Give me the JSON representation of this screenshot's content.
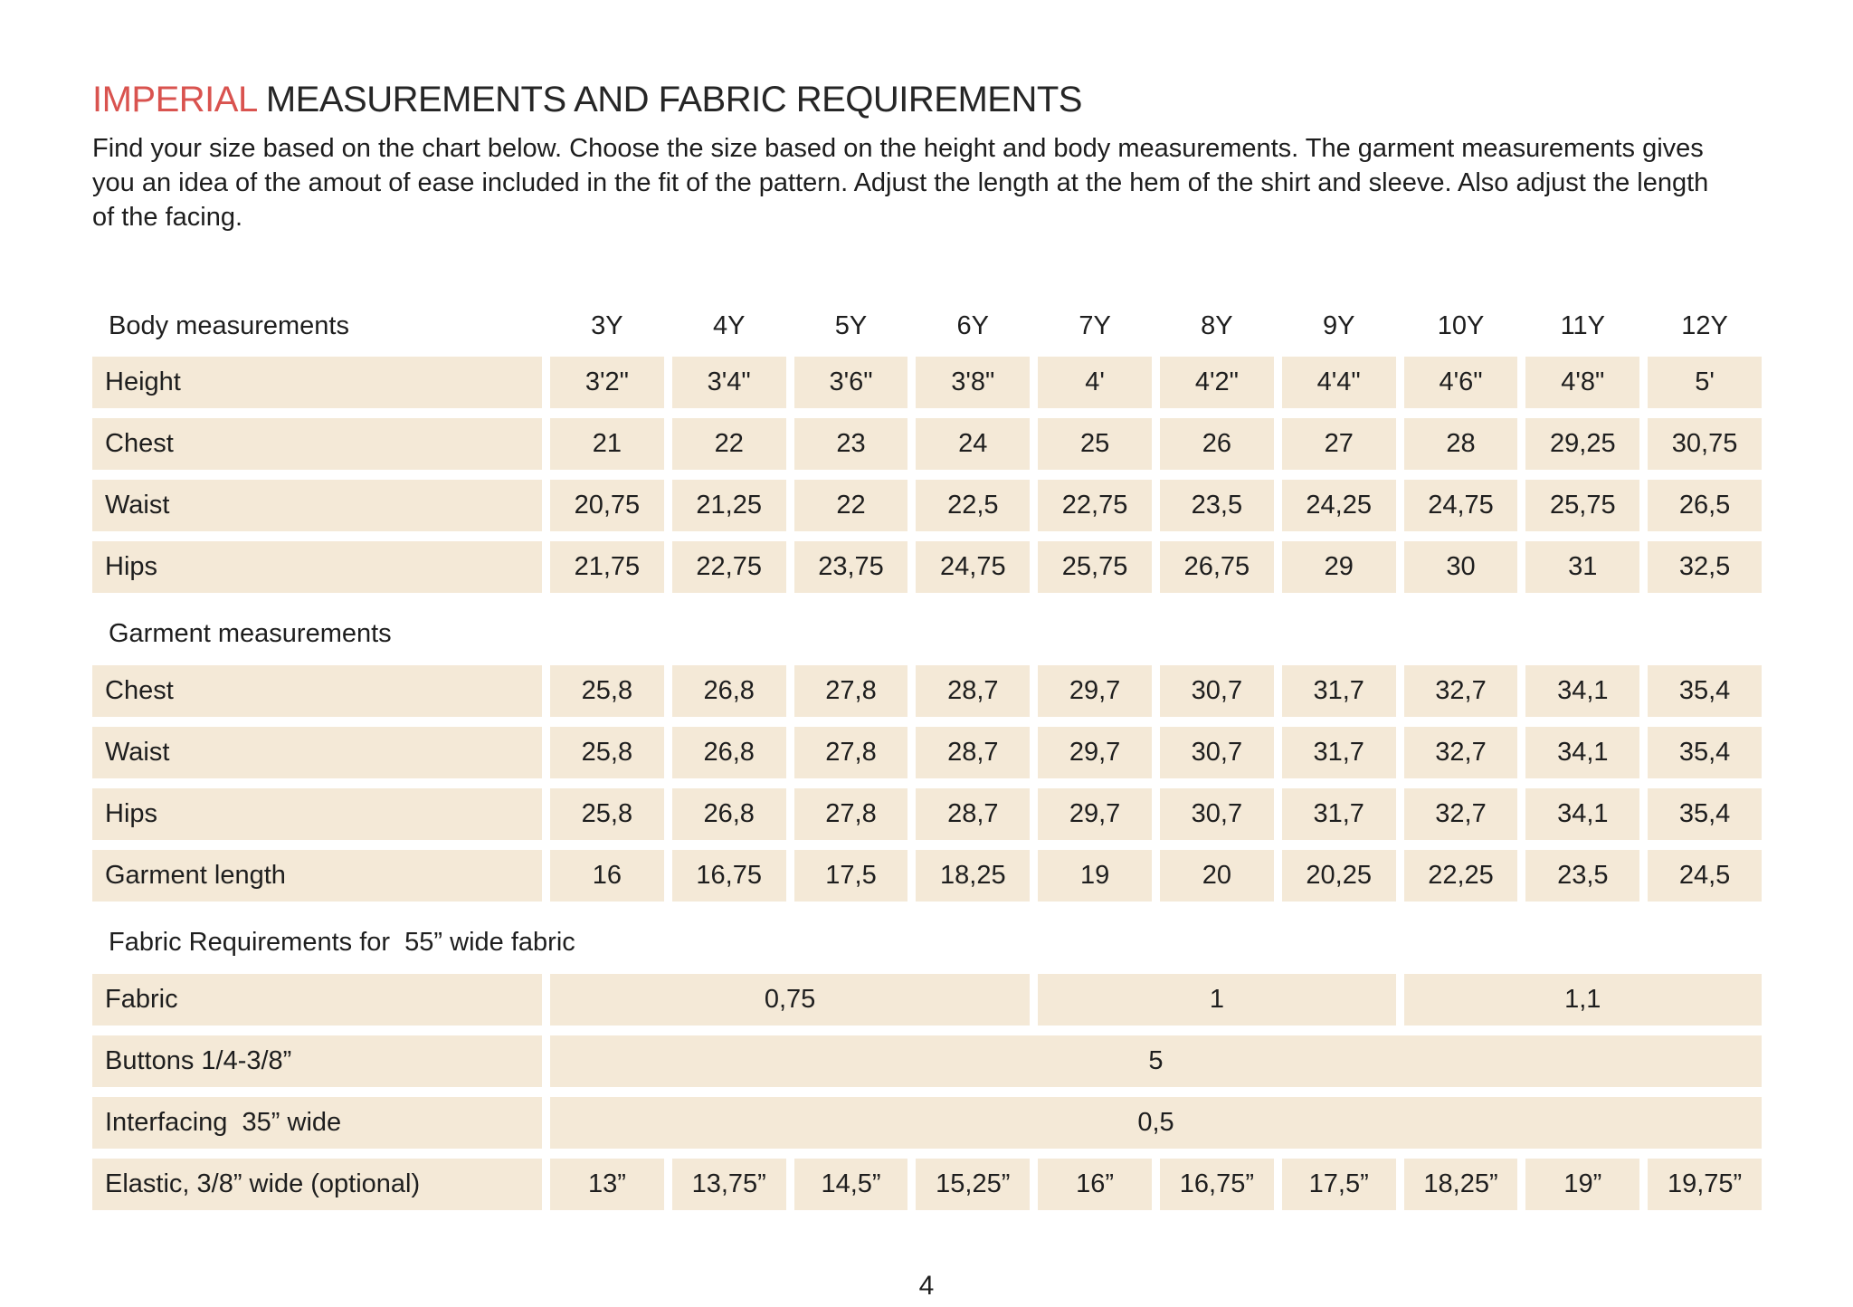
{
  "page": {
    "title_highlight": "IMPERIAL",
    "title_rest": " MEASUREMENTS AND FABRIC REQUIREMENTS",
    "intro": "Find your size based on the chart below. Choose the size based on the height and body measurements. The garment measurements gives you an idea of the amout of ease included in the fit of the pattern. Adjust the length at the hem of the shirt and sleeve. Also adjust the length of the facing.",
    "page_number": "4"
  },
  "colors": {
    "accent_red": "#d9534f",
    "cell_background": "#f4e9d7",
    "text": "#1e1e1e"
  },
  "size_table": {
    "sizes": [
      "3Y",
      "4Y",
      "5Y",
      "6Y",
      "7Y",
      "8Y",
      "9Y",
      "10Y",
      "11Y",
      "12Y"
    ],
    "sections": [
      {
        "header": "Body measurements",
        "show_sizes": true,
        "rows": [
          {
            "label": "Height",
            "values": [
              "3'2\"",
              "3'4\"",
              "3'6\"",
              "3'8\"",
              "4'",
              "4'2\"",
              "4'4\"",
              "4'6\"",
              "4'8\"",
              "5'"
            ]
          },
          {
            "label": "Chest",
            "values": [
              "21",
              "22",
              "23",
              "24",
              "25",
              "26",
              "27",
              "28",
              "29,25",
              "30,75"
            ]
          },
          {
            "label": "Waist",
            "values": [
              "20,75",
              "21,25",
              "22",
              "22,5",
              "22,75",
              "23,5",
              "24,25",
              "24,75",
              "25,75",
              "26,5"
            ]
          },
          {
            "label": "Hips",
            "values": [
              "21,75",
              "22,75",
              "23,75",
              "24,75",
              "25,75",
              "26,75",
              "29",
              "30",
              "31",
              "32,5"
            ]
          }
        ]
      },
      {
        "header": "Garment measurements",
        "show_sizes": false,
        "rows": [
          {
            "label": "Chest",
            "values": [
              "25,8",
              "26,8",
              "27,8",
              "28,7",
              "29,7",
              "30,7",
              "31,7",
              "32,7",
              "34,1",
              "35,4"
            ]
          },
          {
            "label": "Waist",
            "values": [
              "25,8",
              "26,8",
              "27,8",
              "28,7",
              "29,7",
              "30,7",
              "31,7",
              "32,7",
              "34,1",
              "35,4"
            ]
          },
          {
            "label": "Hips",
            "values": [
              "25,8",
              "26,8",
              "27,8",
              "28,7",
              "29,7",
              "30,7",
              "31,7",
              "32,7",
              "34,1",
              "35,4"
            ]
          },
          {
            "label": "Garment length",
            "values": [
              "16",
              "16,75",
              "17,5",
              "18,25",
              "19",
              "20",
              "20,25",
              "22,25",
              "23,5",
              "24,5"
            ]
          }
        ]
      },
      {
        "header": "Fabric Requirements for  55” wide fabric",
        "show_sizes": false,
        "rows": [
          {
            "label": "Fabric",
            "values": [
              {
                "text": "0,75",
                "span": 4
              },
              {
                "text": "1",
                "span": 3
              },
              {
                "text": "1,1",
                "span": 3
              }
            ]
          },
          {
            "label": "Buttons 1/4-3/8”",
            "values": [
              {
                "text": "5",
                "span": 10
              }
            ]
          },
          {
            "label": "Interfacing  35” wide",
            "values": [
              {
                "text": "0,5",
                "span": 10
              }
            ]
          },
          {
            "label": "Elastic, 3/8” wide (optional)",
            "values": [
              "13”",
              "13,75”",
              "14,5”",
              "15,25”",
              "16”",
              "16,75”",
              "17,5”",
              "18,25”",
              "19”",
              "19,75”"
            ]
          }
        ]
      }
    ]
  }
}
